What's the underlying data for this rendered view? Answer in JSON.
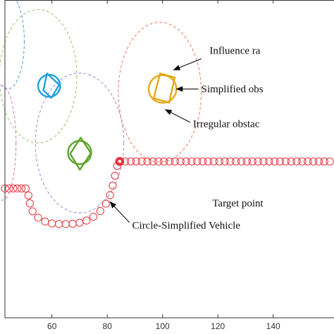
{
  "chart_data": {
    "type": "scatter",
    "xlim": [
      43,
      162
    ],
    "ylim": [
      0,
      100
    ],
    "x_ticks": [
      60,
      80,
      100,
      120,
      140
    ],
    "x_tick_labels": [
      "60",
      "80",
      "100",
      "120",
      "140"
    ],
    "grid": false,
    "influence_circles": [
      {
        "cx": 44,
        "cy": 87,
        "rx": 6,
        "ry": 15,
        "color": "#5a9bd5"
      },
      {
        "cx": 55,
        "cy": 76,
        "rx": 14,
        "ry": 21,
        "color": "#a9c47f"
      },
      {
        "cx": 42,
        "cy": 55,
        "rx": 5,
        "ry": 18,
        "color": "#d97fc0"
      },
      {
        "cx": 70,
        "cy": 55,
        "rx": 16,
        "ry": 22,
        "color": "#a98fd6"
      },
      {
        "cx": 99,
        "cy": 71,
        "rx": 15,
        "ry": 22,
        "color": "#e8866b"
      }
    ],
    "obstacles": [
      {
        "name": "obstacle-a",
        "cx": 59,
        "cy": 73,
        "r": 4,
        "color": "#1ea1e0",
        "polygon": [
          [
            58.2,
            76.9
          ],
          [
            62.6,
            73.3
          ],
          [
            59.8,
            69.2
          ],
          [
            56.9,
            71.6
          ]
        ]
      },
      {
        "name": "obstacle-b",
        "cx": 100,
        "cy": 72,
        "r": 5,
        "color": "#e6a817",
        "polygon": [
          [
            99.1,
            76.9
          ],
          [
            104.4,
            75.6
          ],
          [
            102.4,
            67.7
          ],
          [
            96.8,
            69.1
          ]
        ]
      },
      {
        "name": "obstacle-c",
        "cx": 70,
        "cy": 52,
        "r": 4.2,
        "color": "#5fa42d",
        "polygon": [
          [
            70.4,
            56.7
          ],
          [
            74.1,
            51.8
          ],
          [
            70.1,
            46.6
          ],
          [
            66.6,
            51.6
          ]
        ]
      }
    ],
    "vehicle_path": {
      "color": "#e8323c",
      "circle_radius": 1.3,
      "points": [
        [
          43,
          40.7
        ],
        [
          44.5,
          40.7
        ],
        [
          46,
          40.7
        ],
        [
          47.5,
          40.7
        ],
        [
          49,
          40.7
        ],
        [
          50.5,
          40.7
        ],
        [
          51.5,
          38.5
        ],
        [
          52,
          36
        ],
        [
          53,
          33.5
        ],
        [
          55,
          31.5
        ],
        [
          57.5,
          30.3
        ],
        [
          60,
          29.7
        ],
        [
          62.5,
          29.5
        ],
        [
          65,
          29.5
        ],
        [
          67.5,
          29.6
        ],
        [
          70,
          29.9
        ],
        [
          72.5,
          30.6
        ],
        [
          75,
          31.8
        ],
        [
          77.5,
          33.6
        ],
        [
          79.5,
          35.9
        ],
        [
          81,
          38.6
        ],
        [
          82,
          41.6
        ],
        [
          82.8,
          44.7
        ],
        [
          83.6,
          47.8
        ],
        [
          84.5,
          49.2
        ],
        [
          86.5,
          49.2
        ],
        [
          88.5,
          49.2
        ],
        [
          90.5,
          49.2
        ],
        [
          92.5,
          49.2
        ],
        [
          94.5,
          49.2
        ],
        [
          96.5,
          49.2
        ],
        [
          98.5,
          49.2
        ],
        [
          100.5,
          49.2
        ],
        [
          102.5,
          49.2
        ],
        [
          104.5,
          49.2
        ],
        [
          106.5,
          49.2
        ],
        [
          108.5,
          49.2
        ],
        [
          110.5,
          49.2
        ],
        [
          112.5,
          49.2
        ],
        [
          114.5,
          49.2
        ],
        [
          116.5,
          49.2
        ],
        [
          118.5,
          49.2
        ],
        [
          120.5,
          49.2
        ],
        [
          122.5,
          49.2
        ],
        [
          124.5,
          49.2
        ],
        [
          126.5,
          49.2
        ],
        [
          128.5,
          49.2
        ],
        [
          130.5,
          49.2
        ],
        [
          132.5,
          49.2
        ],
        [
          134.5,
          49.2
        ],
        [
          136.5,
          49.2
        ],
        [
          138.5,
          49.2
        ],
        [
          140.5,
          49.2
        ],
        [
          142.5,
          49.2
        ],
        [
          144.5,
          49.2
        ],
        [
          146.5,
          49.2
        ],
        [
          148.5,
          49.2
        ],
        [
          150.5,
          49.2
        ],
        [
          152.5,
          49.2
        ],
        [
          154.5,
          49.2
        ],
        [
          156.5,
          49.2
        ],
        [
          158.5,
          49.2
        ],
        [
          160.5,
          49.2
        ]
      ]
    },
    "target_point": [
      84.5,
      49.2
    ],
    "annotations": [
      {
        "name": "annotation-influence-radius",
        "text": "Influence ra",
        "text_at": [
          117,
          83
        ],
        "tail": [
          114,
          81.5
        ],
        "head": [
          104,
          78
        ]
      },
      {
        "name": "annotation-simplified-obstacle",
        "text": "Simplified obs",
        "text_at": [
          114,
          71
        ],
        "tail": [
          113,
          72
        ],
        "head": [
          105,
          72
        ]
      },
      {
        "name": "annotation-irregular-obstacle",
        "text": "Irregular obstac",
        "text_at": [
          111,
          60
        ],
        "tail": [
          110,
          61.5
        ],
        "head": [
          101,
          65.5
        ]
      },
      {
        "name": "annotation-target-point",
        "text": "Target point",
        "text_at": [
          118,
          35
        ],
        "tail": null,
        "head": null
      },
      {
        "name": "annotation-vehicle",
        "text": "Circle-Simplified Vehicle",
        "text_at": [
          89,
          28
        ],
        "tail": [
          88,
          30
        ],
        "head": [
          81,
          36.5
        ]
      }
    ]
  }
}
